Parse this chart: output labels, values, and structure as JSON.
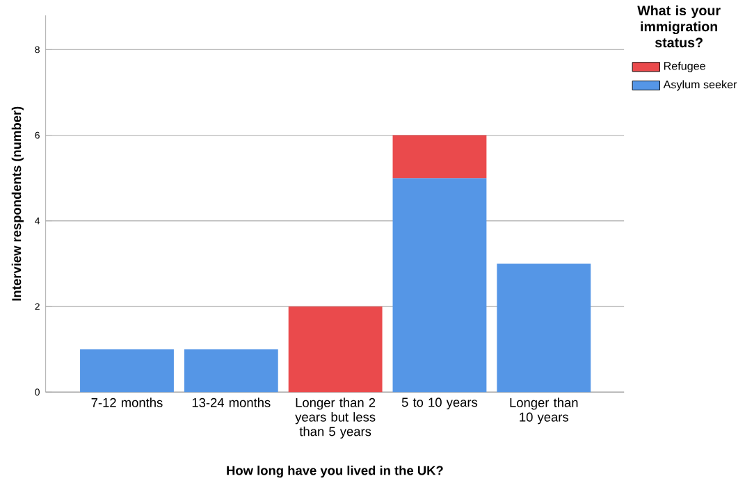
{
  "chart_data": {
    "type": "bar",
    "stacked": true,
    "xlabel": "How long have you lived in the UK?",
    "ylabel": "Interview respondents (number)",
    "legend_title": "What is your immigration status?",
    "categories": [
      "7-12 months",
      "13-24 months",
      "Longer than 2 years but less than 5 years",
      "5 to 10 years",
      "Longer than 10 years"
    ],
    "series": [
      {
        "name": "Asylum seeker",
        "color": "#5596e6",
        "values": [
          1,
          1,
          null,
          5,
          3
        ]
      },
      {
        "name": "Refugee",
        "color": "#ea4a4c",
        "values": [
          null,
          null,
          2,
          1,
          null
        ]
      }
    ],
    "ylim": [
      0,
      8.8
    ],
    "yticks": [
      0,
      2,
      4,
      6,
      8
    ],
    "grid": "y",
    "legend": "top right"
  }
}
